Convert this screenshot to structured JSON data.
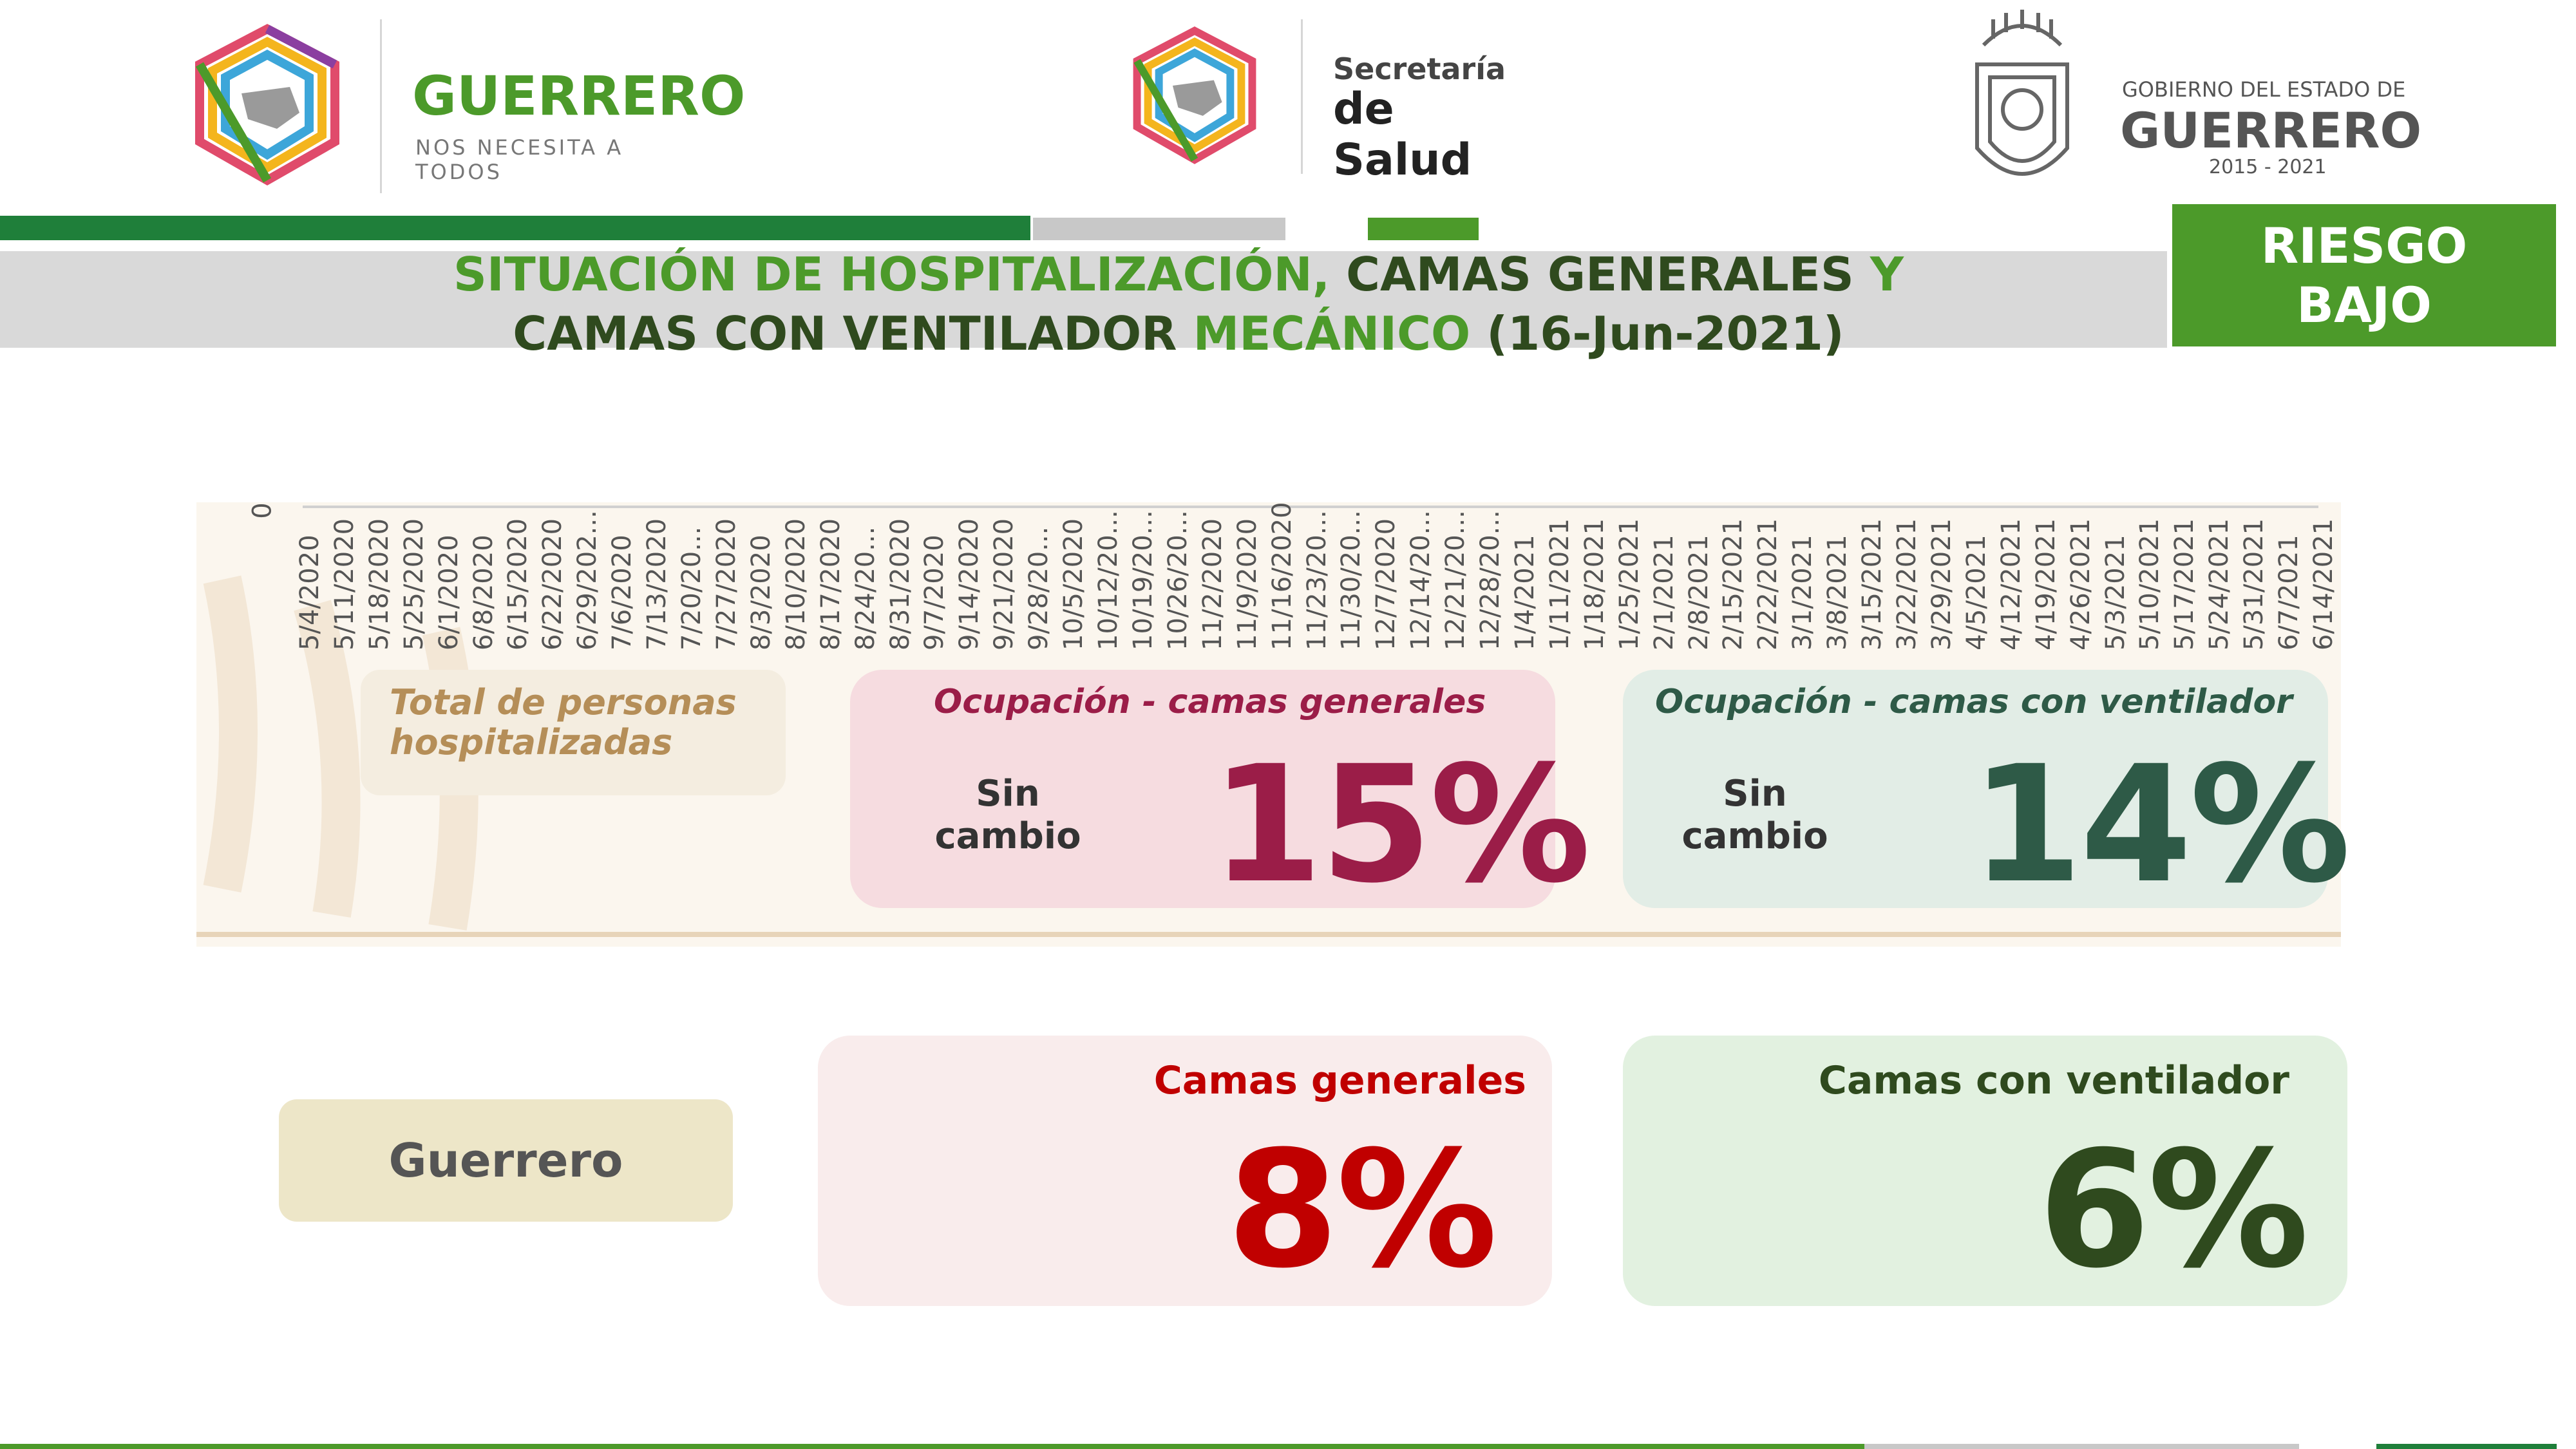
{
  "header": {
    "guerrero_logo": {
      "name": "GUERRERO",
      "tagline": "NOS NECESITA A TODOS"
    },
    "salud_logo": {
      "line1": "Secretaría",
      "line2": "de Salud"
    },
    "gobierno_logo": {
      "line1": "GOBIERNO DEL ESTADO DE",
      "line2": "GUERRERO",
      "years": "2015 - 2021"
    }
  },
  "title": {
    "part1": "SITUACIÓN DE HOSPITALIZACIÓN,",
    "part2": " CAMAS GENERALES ",
    "part3": "Y",
    "part4": "CAMAS CON VENTILADOR ",
    "part5": "MECÁNICO",
    "part6": " (16-Jun-2021)"
  },
  "risk": {
    "line1": "RIESGO",
    "line2": "BAJO"
  },
  "chart_data": {
    "type": "line",
    "y_zero_label": "0",
    "categories": [
      "5/4/2020",
      "5/11/2020",
      "5/18/2020",
      "5/25/2020",
      "6/1/2020",
      "6/8/2020",
      "6/15/2020",
      "6/22/2020",
      "6/29/202...",
      "7/6/2020",
      "7/13/2020",
      "7/20/20...",
      "7/27/2020",
      "8/3/2020",
      "8/10/2020",
      "8/17/2020",
      "8/24/20...",
      "8/31/2020",
      "9/7/2020",
      "9/14/2020",
      "9/21/2020",
      "9/28/20...",
      "10/5/2020",
      "10/12/20...",
      "10/19/20...",
      "10/26/20...",
      "11/2/2020",
      "11/9/2020",
      "11/16/2020",
      "11/23/20...",
      "11/30/20...",
      "12/7/2020",
      "12/14/20...",
      "12/21/20...",
      "12/28/20...",
      "1/4/2021",
      "1/11/2021",
      "1/18/2021",
      "1/25/2021",
      "2/1/2021",
      "2/8/2021",
      "2/15/2021",
      "2/22/2021",
      "3/1/2021",
      "3/8/2021",
      "3/15/2021",
      "3/22/2021",
      "3/29/2021",
      "4/5/2021",
      "4/12/2021",
      "4/19/2021",
      "4/26/2021",
      "5/3/2021",
      "5/10/2021",
      "5/17/2021",
      "5/24/2021",
      "5/31/2021",
      "6/7/2021",
      "6/14/2021"
    ]
  },
  "cards": {
    "hospitalized": {
      "label_line1": "Total de personas",
      "label_line2": "hospitalizadas"
    },
    "occupancy_general": {
      "label": "Ocupación - camas generales",
      "change_line1": "Sin",
      "change_line2": "cambio",
      "value": "15%"
    },
    "occupancy_ventilator": {
      "label": "Ocupación - camas con ventilador",
      "change_line1": "Sin",
      "change_line2": "cambio",
      "value": "14%"
    },
    "state": {
      "label": "Guerrero"
    },
    "beds_general": {
      "label": "Camas generales",
      "value": "8%"
    },
    "beds_ventilator": {
      "label": "Camas con ventilador",
      "value": "6%"
    }
  },
  "colors": {
    "brand_green": "#4c9a2a",
    "dark_green": "#2f4a1e",
    "crimson": "#9b1d48",
    "red": "#c00000",
    "teal_dark": "#2e5a47"
  }
}
